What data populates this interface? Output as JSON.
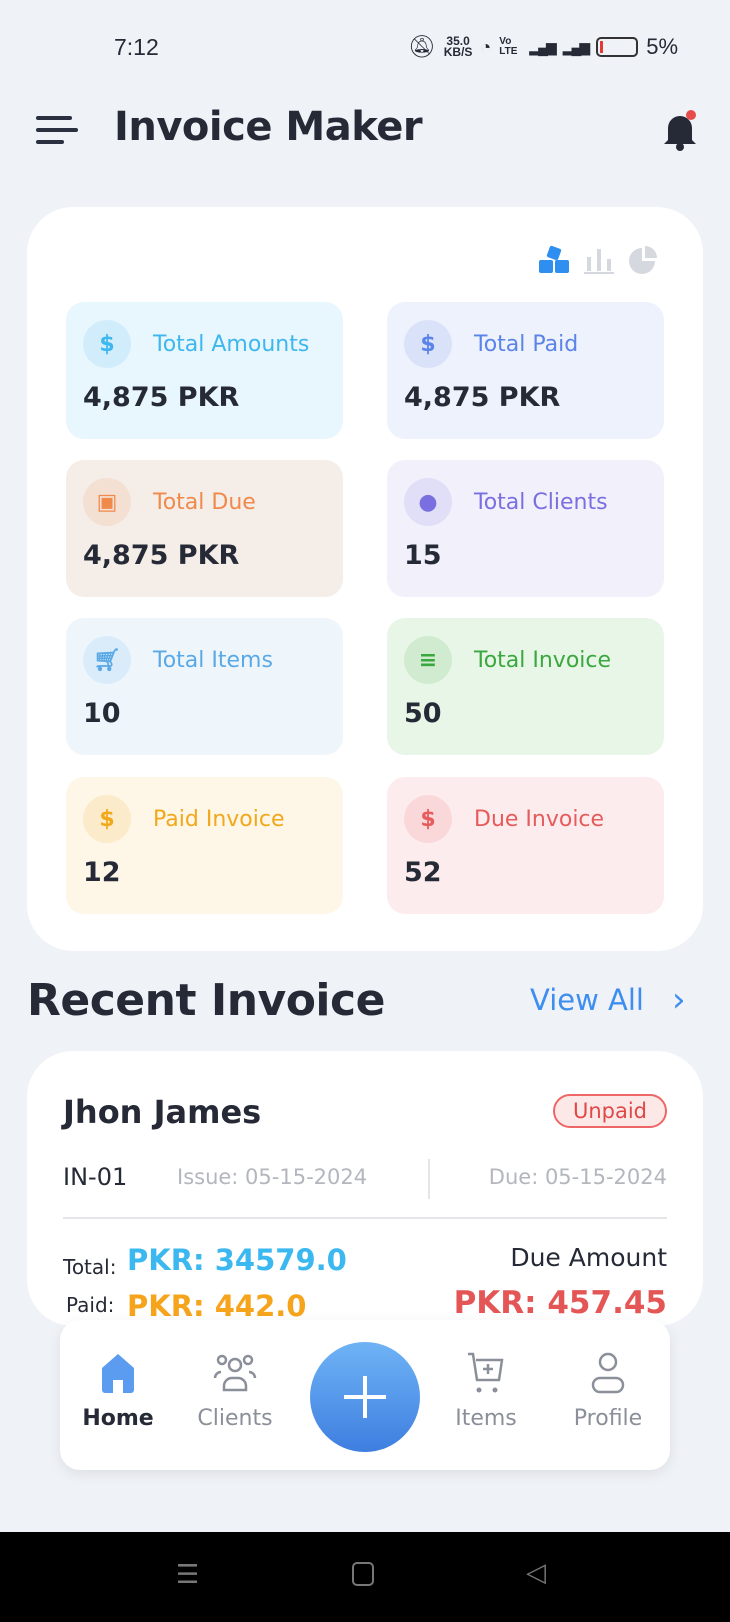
{
  "status_bar": {
    "time": "7:12",
    "net_speed": "35.0",
    "net_unit": "KB/S",
    "network": "Vo LTE",
    "battery": "5%"
  },
  "header": {
    "title": "Invoice Maker"
  },
  "stats": [
    {
      "label": "Total Amounts",
      "value": "4,875 PKR",
      "icon": "money-bag-icon",
      "color": "#3db7ee",
      "bg": "#e8f6fe"
    },
    {
      "label": "Total Paid",
      "value": "4,875 PKR",
      "icon": "hand-coin-icon",
      "color": "#5b83e8",
      "bg": "#eef2fd"
    },
    {
      "label": "Total Due",
      "value": "4,875 PKR",
      "icon": "cash-due-icon",
      "color": "#f08a4b",
      "bg": "#f5ede8"
    },
    {
      "label": "Total Clients",
      "value": "15",
      "icon": "group-icon",
      "color": "#7a6fe0",
      "bg": "#f1f0fb"
    },
    {
      "label": "Total Items",
      "value": "10",
      "icon": "cart-icon",
      "color": "#5aa9e6",
      "bg": "#eef6fc"
    },
    {
      "label": "Total Invoice",
      "value": "50",
      "icon": "receipt-icon",
      "color": "#3aa83f",
      "bg": "#e8f6e8"
    },
    {
      "label": "Paid Invoice",
      "value": "12",
      "icon": "paid-invoice-icon",
      "color": "#f2a81b",
      "bg": "#fef6e6"
    },
    {
      "label": "Due Invoice",
      "value": "52",
      "icon": "due-invoice-icon",
      "color": "#e65b5b",
      "bg": "#fdeced"
    }
  ],
  "recent": {
    "title": "Recent Invoice",
    "view_all": "View All"
  },
  "invoice": {
    "client": "Jhon James",
    "status": "Unpaid",
    "number": "IN-01",
    "issue": "Issue: 05-15-2024",
    "due": "Due: 05-15-2024",
    "total_label": "Total:",
    "total": "PKR: 34579.0",
    "paid_label": "Paid:",
    "paid": "PKR: 442.0",
    "due_amount_label": "Due Amount",
    "due_amount": "PKR: 457.45"
  },
  "nav": {
    "items": [
      {
        "label": "Home",
        "active": true
      },
      {
        "label": "Clients"
      },
      {
        "label": "Items"
      },
      {
        "label": "Profile"
      }
    ]
  }
}
